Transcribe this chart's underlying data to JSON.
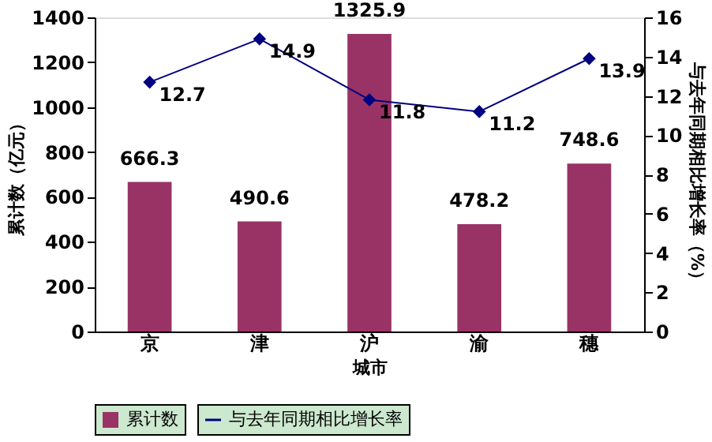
{
  "chart_data": {
    "type": "bar",
    "categories": [
      "京",
      "津",
      "沪",
      "渝",
      "穗"
    ],
    "xlabel": "城市",
    "ylabel": "累计数（亿元）",
    "y2label": "与去年同期相比增长率（%）",
    "series": [
      {
        "name": "累计数",
        "color": "#993366",
        "values": [
          666.3,
          490.6,
          1325.9,
          478.2,
          748.6
        ]
      },
      {
        "name": "与去年同期相比增长率",
        "type": "line",
        "axis": "y2",
        "color": "#000080",
        "marker": "diamond",
        "values": [
          12.7,
          14.9,
          11.8,
          11.2,
          13.9
        ]
      }
    ],
    "ylim": [
      0,
      1400
    ],
    "yticks": [
      0,
      200,
      400,
      600,
      800,
      1000,
      1200,
      1400
    ],
    "y2lim": [
      0,
      16
    ],
    "y2ticks": [
      0,
      2,
      4,
      6,
      8,
      10,
      12,
      14,
      16
    ],
    "data_labels": true,
    "grid": false,
    "legend": "bottom"
  }
}
